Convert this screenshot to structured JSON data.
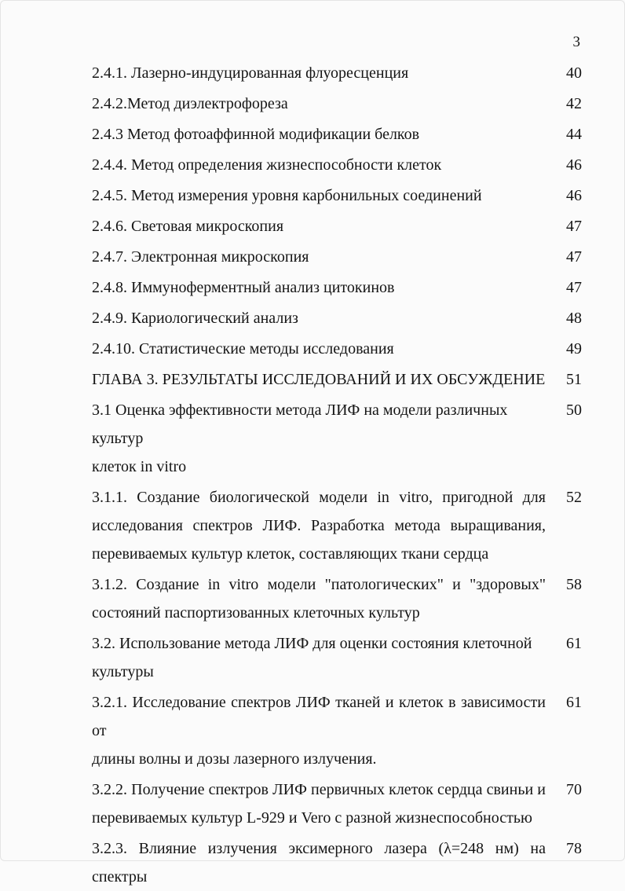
{
  "page": {
    "number": "3"
  },
  "toc": {
    "entries": [
      {
        "page": "40",
        "lines": [
          {
            "text": "2.4.1. Лазерно-индуцированная флуоресценция",
            "justify": false
          }
        ]
      },
      {
        "page": "42",
        "lines": [
          {
            "text": "2.4.2.Метод диэлектрофореза",
            "justify": false
          }
        ]
      },
      {
        "page": "44",
        "lines": [
          {
            "text": "2.4.3 Метод фотоаффинной модификации белков",
            "justify": false
          }
        ]
      },
      {
        "page": "46",
        "lines": [
          {
            "text": "2.4.4. Метод определения жизнеспособности клеток",
            "justify": false
          }
        ]
      },
      {
        "page": "46",
        "lines": [
          {
            "text": "2.4.5. Метод измерения уровня карбонильных соединений",
            "justify": false
          }
        ]
      },
      {
        "page": "47",
        "lines": [
          {
            "text": "2.4.6. Световая микроскопия",
            "justify": false
          }
        ]
      },
      {
        "page": "47",
        "lines": [
          {
            "text": "2.4.7. Электронная микроскопия",
            "justify": false
          }
        ]
      },
      {
        "page": "47",
        "lines": [
          {
            "text": "2.4.8. Иммуноферментный анализ цитокинов",
            "justify": false
          }
        ]
      },
      {
        "page": "48",
        "lines": [
          {
            "text": "2.4.9. Кариологический анализ",
            "justify": false
          }
        ]
      },
      {
        "page": "49",
        "lines": [
          {
            "text": "2.4.10. Статистические методы исследования",
            "justify": false
          }
        ]
      },
      {
        "page": "51",
        "lines": [
          {
            "text": "ГЛАВА 3. РЕЗУЛЬТАТЫ ИССЛЕДОВАНИЙ И ИХ ОБСУЖДЕНИЕ",
            "justify": false
          }
        ]
      },
      {
        "page": "50",
        "lines": [
          {
            "text": "3.1 Оценка эффективности метода ЛИФ на модели различных культур",
            "justify": false
          },
          {
            "text": "клеток in vitro",
            "justify": false
          }
        ]
      },
      {
        "page": "52",
        "lines": [
          {
            "text": "3.1.1. Создание биологической модели  in vitro, пригодной для",
            "justify": true
          },
          {
            "text": "исследования спектров ЛИФ. Разработка метода выращивания,",
            "justify": true
          },
          {
            "text": "перевиваемых культур клеток, составляющих ткани сердца",
            "justify": false
          }
        ]
      },
      {
        "page": "58",
        "lines": [
          {
            "text": "3.1.2. Создание in vitro модели \"патологических\" и \"здоровых\"",
            "justify": true
          },
          {
            "text": "состояний паспортизованных клеточных культур",
            "justify": false
          }
        ]
      },
      {
        "page": "61",
        "lines": [
          {
            "text": "3.2. Использование метода ЛИФ для оценки состояния клеточной",
            "justify": false
          },
          {
            "text": "культуры",
            "justify": false
          }
        ]
      },
      {
        "page": "61",
        "lines": [
          {
            "text": "3.2.1. Исследование спектров ЛИФ тканей и клеток в зависимости от",
            "justify": true
          },
          {
            "text": "длины волны и дозы лазерного излучения.",
            "justify": false
          }
        ]
      },
      {
        "page": "70",
        "lines": [
          {
            "text": "3.2.2. Получение спектров ЛИФ первичных клеток сердца свиньи и",
            "justify": true
          },
          {
            "text": "перевиваемых культур L-929 и Vero с разной жизнеспособностью",
            "justify": false
          }
        ]
      },
      {
        "page": "78",
        "lines": [
          {
            "text": "3.2.3. Влияние излучения эксимерного лазера (λ=248 нм) на спектры",
            "justify": true
          }
        ]
      }
    ]
  }
}
